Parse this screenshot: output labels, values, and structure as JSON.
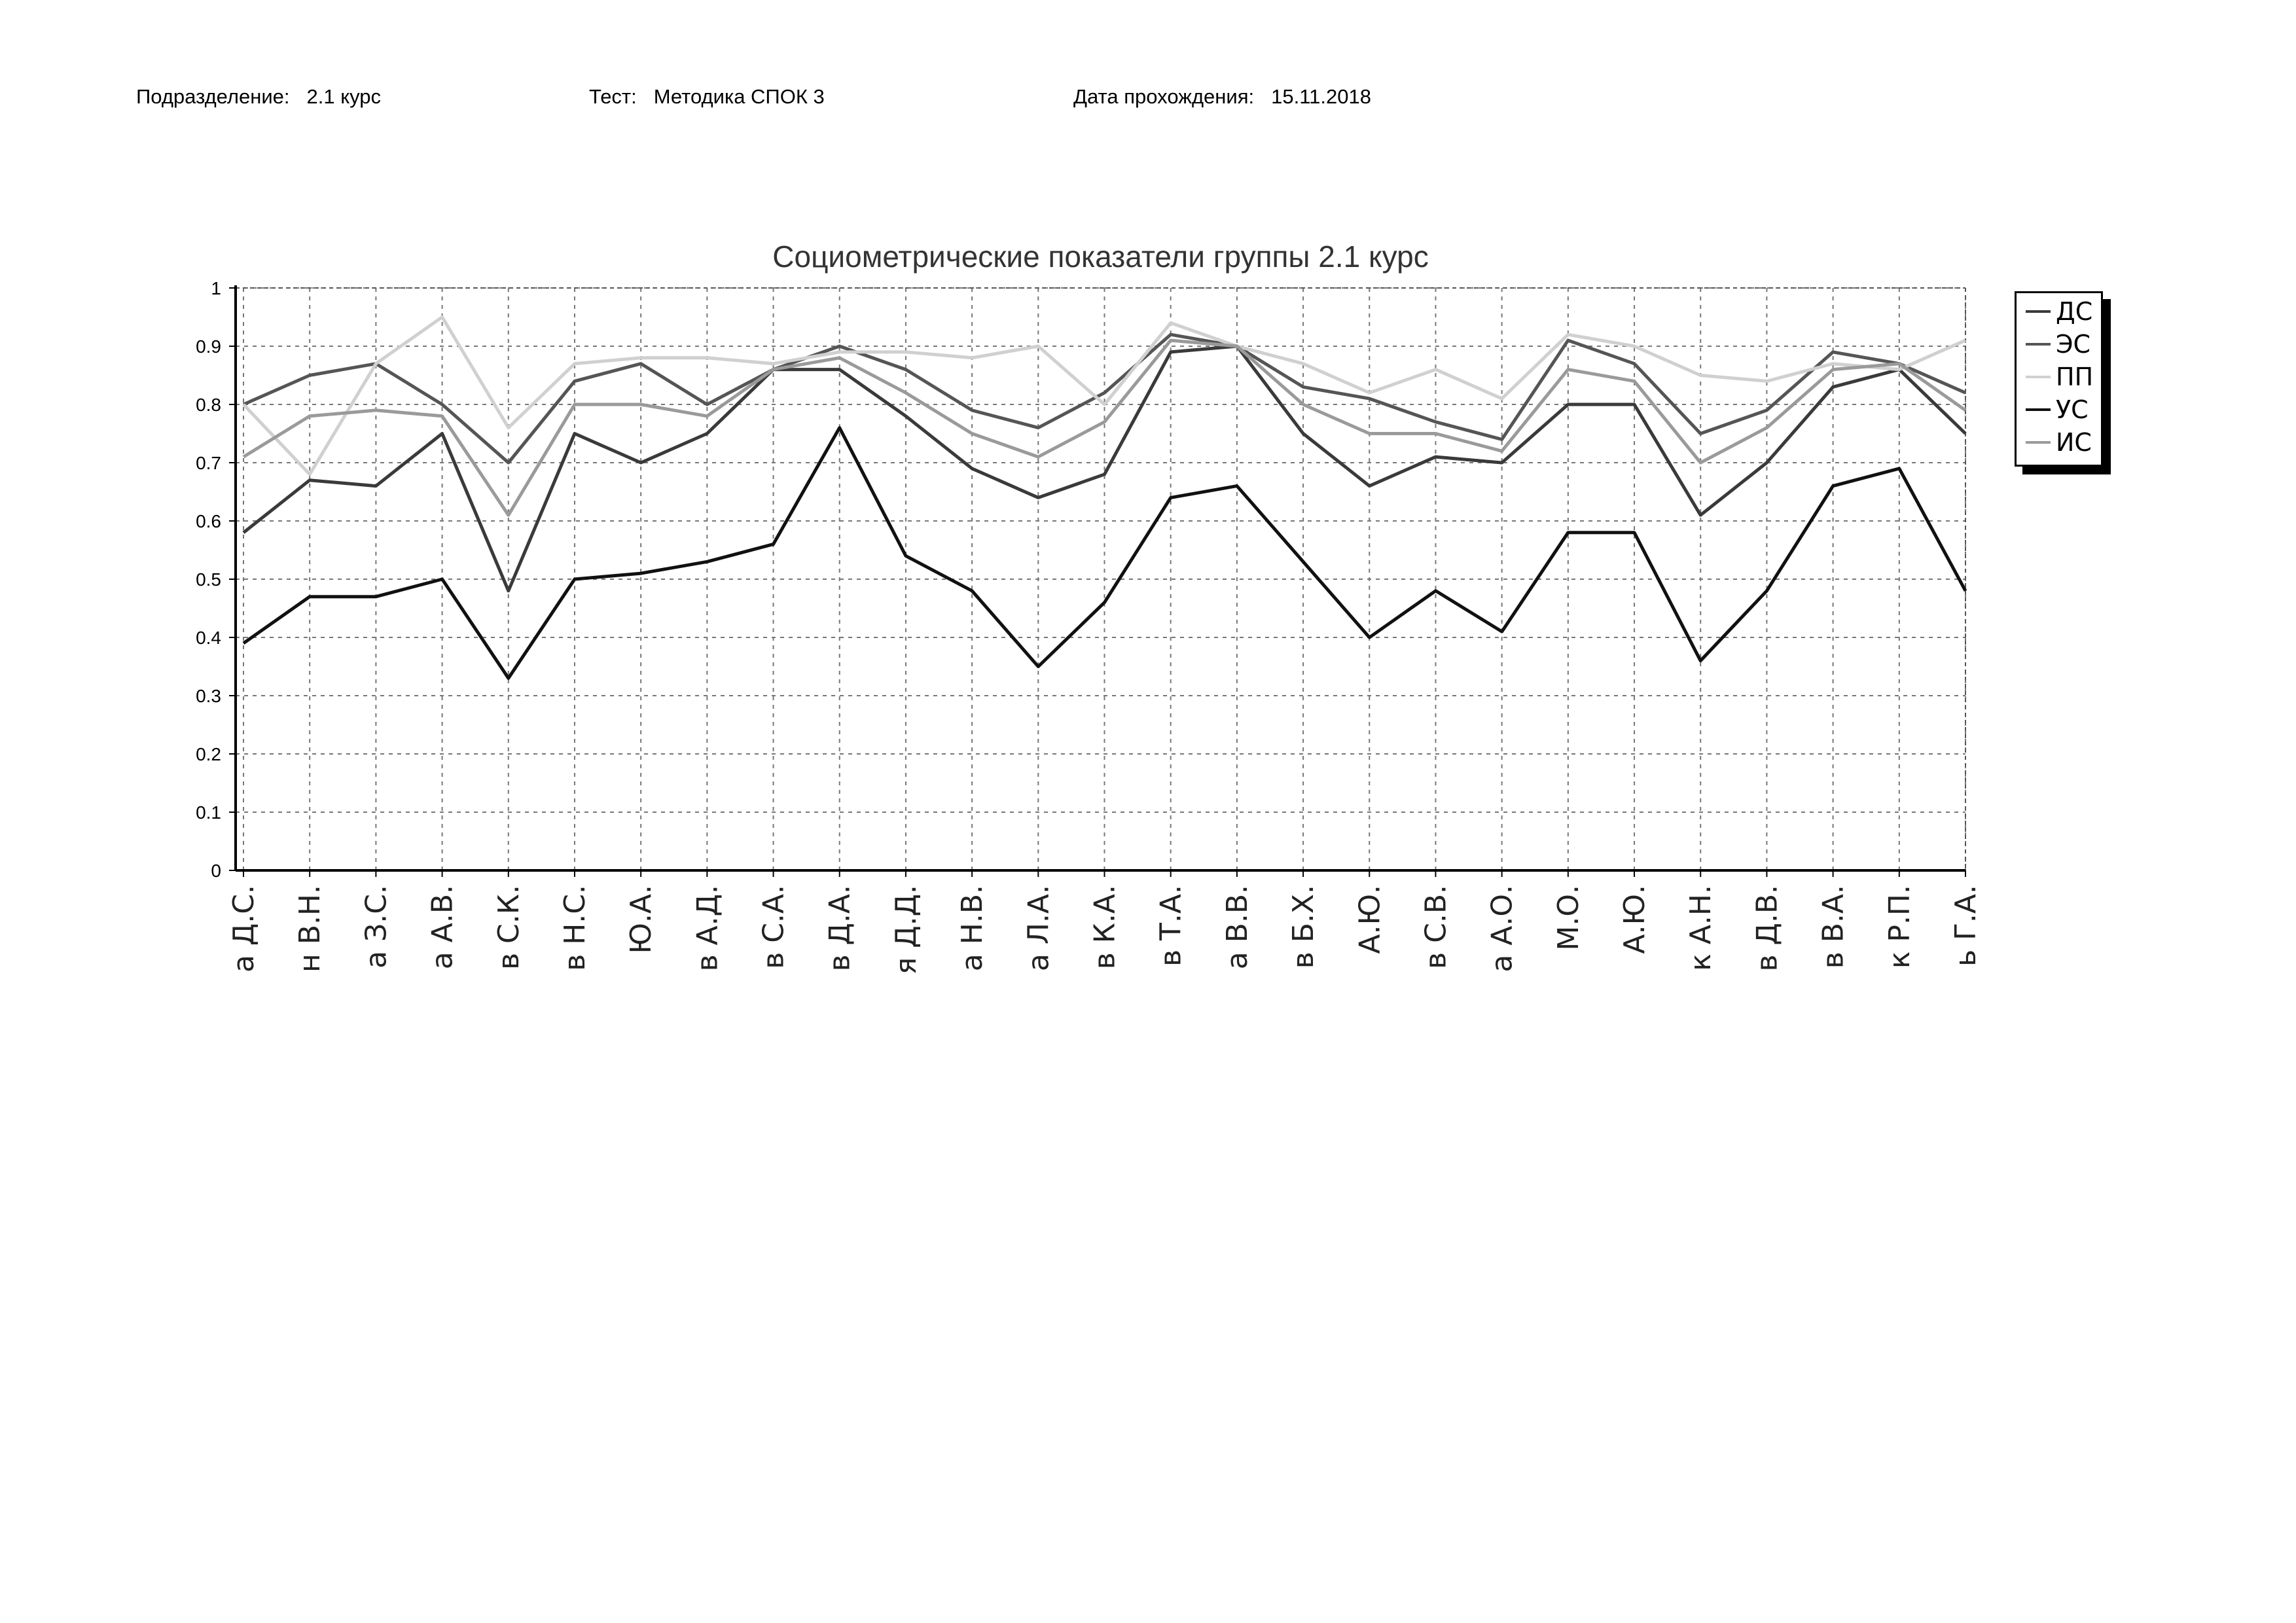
{
  "header": {
    "dept_label": "Подразделение:",
    "dept_value": "2.1 курс",
    "test_label": "Тест:",
    "test_value": "Методика СПОК 3",
    "date_label": "Дата прохождения:",
    "date_value": "15.11.2018"
  },
  "chart_data": {
    "type": "line",
    "title": "Социометрические показатели группы 2.1 курс",
    "xlabel": "",
    "ylabel": "",
    "ylim": [
      0,
      1
    ],
    "yticks": [
      "0",
      "0.1",
      "0.2",
      "0.3",
      "0.4",
      "0.5",
      "0.6",
      "0.7",
      "0.8",
      "0.9",
      "1"
    ],
    "grid": true,
    "legend_position": "right",
    "categories": [
      "а Д.С.",
      "н В.Н.",
      "а З.С.",
      "а А.В.",
      "в С.К.",
      "в Н.С.",
      "Ю.А.",
      "в А.Д.",
      "в С.А.",
      "в Д.А.",
      "я Д.Д.",
      "а Н.В.",
      "а Л.А.",
      "в К.А.",
      "в Т.А.",
      "а В.В.",
      "в Б.Х.",
      "А.Ю.",
      "в С.В.",
      "а А.О.",
      "М.О.",
      "А.Ю.",
      "к А.Н.",
      "в Д.В.",
      "в В.А.",
      "к Р.П.",
      "ь Г.А."
    ],
    "series": [
      {
        "name": "ДС",
        "color": "#3a3a3a",
        "values": [
          0.58,
          0.67,
          0.66,
          0.75,
          0.48,
          0.75,
          0.7,
          0.75,
          0.86,
          0.86,
          0.78,
          0.69,
          0.64,
          0.68,
          0.89,
          0.9,
          0.75,
          0.66,
          0.71,
          0.7,
          0.8,
          0.8,
          0.61,
          0.7,
          0.83,
          0.86,
          0.75
        ]
      },
      {
        "name": "ЭС",
        "color": "#555555",
        "values": [
          0.8,
          0.85,
          0.87,
          0.8,
          0.7,
          0.84,
          0.87,
          0.8,
          0.86,
          0.9,
          0.86,
          0.79,
          0.76,
          0.82,
          0.92,
          0.9,
          0.83,
          0.81,
          0.77,
          0.74,
          0.91,
          0.87,
          0.75,
          0.79,
          0.89,
          0.87,
          0.82
        ]
      },
      {
        "name": "ПП",
        "color": "#d0d0d0",
        "values": [
          0.8,
          0.68,
          0.87,
          0.95,
          0.76,
          0.87,
          0.88,
          0.88,
          0.87,
          0.89,
          0.89,
          0.88,
          0.9,
          0.8,
          0.94,
          0.9,
          0.87,
          0.82,
          0.86,
          0.81,
          0.92,
          0.9,
          0.85,
          0.84,
          0.87,
          0.86,
          0.91
        ]
      },
      {
        "name": "УС",
        "color": "#111111",
        "values": [
          0.39,
          0.47,
          0.47,
          0.5,
          0.33,
          0.5,
          0.51,
          0.53,
          0.56,
          0.76,
          0.54,
          0.48,
          0.35,
          0.46,
          0.64,
          0.66,
          0.53,
          0.4,
          0.48,
          0.41,
          0.58,
          0.58,
          0.36,
          0.48,
          0.66,
          0.69,
          0.48
        ]
      },
      {
        "name": "ИС",
        "color": "#9a9a9a",
        "values": [
          0.71,
          0.78,
          0.79,
          0.78,
          0.61,
          0.8,
          0.8,
          0.78,
          0.86,
          0.88,
          0.82,
          0.75,
          0.71,
          0.77,
          0.91,
          0.9,
          0.8,
          0.75,
          0.75,
          0.72,
          0.86,
          0.84,
          0.7,
          0.76,
          0.86,
          0.87,
          0.79
        ]
      }
    ]
  }
}
